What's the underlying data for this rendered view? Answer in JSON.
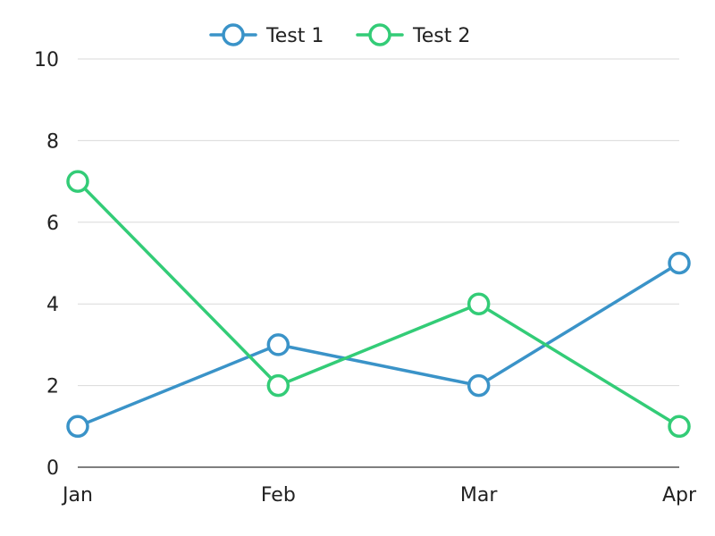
{
  "chart_data": {
    "type": "line",
    "categories": [
      "Jan",
      "Feb",
      "Mar",
      "Apr"
    ],
    "series": [
      {
        "name": "Test 1",
        "values": [
          1,
          3,
          2,
          5
        ],
        "color": "#3a93c8"
      },
      {
        "name": "Test 2",
        "values": [
          7,
          2,
          4,
          1
        ],
        "color": "#33cc77"
      }
    ],
    "ylim": [
      0,
      10
    ],
    "yticks": [
      0,
      2,
      4,
      6,
      8,
      10
    ],
    "grid": true,
    "legend_position": "top-center",
    "marker": "hollow-circle"
  }
}
